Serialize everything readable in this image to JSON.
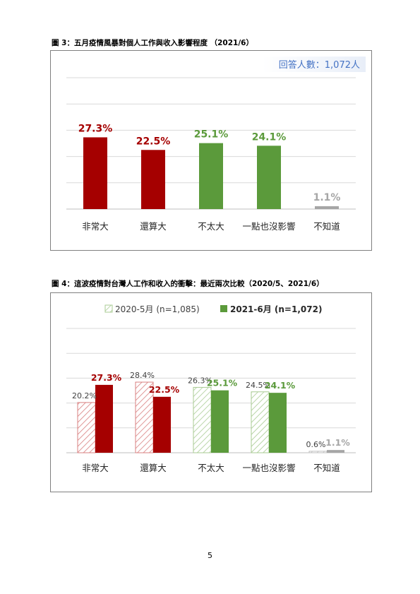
{
  "figure1": {
    "title": "圖 3：五月疫情風暴對個人工作與收入影響程度 （2021/6）",
    "annotation": "回答人數：1,072人"
  },
  "figure2": {
    "title": "圖 4：這波疫情對台灣人工作和收入的衝擊：最近兩次比較（2020/5、2021/6）"
  },
  "page_number": "5",
  "colors": {
    "dark_red": "#a50000",
    "green": "#5b9a3b",
    "gray": "#a6a6a6",
    "annotation_blue": "#4472c4",
    "hatch_red": "#d98080",
    "hatch_green": "#b5d3a2"
  },
  "chart_data": [
    {
      "type": "bar",
      "categories": [
        "非常大",
        "還算大",
        "不太大",
        "一點也沒影響",
        "不知道"
      ],
      "values": [
        27.3,
        22.5,
        25.1,
        24.1,
        1.1
      ],
      "data_labels": [
        "27.3%",
        "22.5%",
        "25.1%",
        "24.1%",
        "1.1%"
      ],
      "bar_colors": [
        "#a50000",
        "#a50000",
        "#5b9a3b",
        "#5b9a3b",
        "#a6a6a6"
      ],
      "ylim": [
        0,
        50
      ],
      "grid": true,
      "title": "",
      "xlabel": "",
      "ylabel": ""
    },
    {
      "type": "bar",
      "categories": [
        "非常大",
        "還算大",
        "不太大",
        "一點也沒影響",
        "不知道"
      ],
      "series": [
        {
          "name": "2020-5月 (n=1,085)",
          "values": [
            20.2,
            28.4,
            26.3,
            24.5,
            0.6
          ],
          "data_labels": [
            "20.2%",
            "28.4%",
            "26.3%",
            "24.5%",
            "0.6%"
          ],
          "style": "hatched",
          "colors": [
            "#d98080",
            "#d98080",
            "#b5d3a2",
            "#b5d3a2",
            "#bfbfbf"
          ]
        },
        {
          "name": "2021-6月 (n=1,072)",
          "values": [
            27.3,
            22.5,
            25.1,
            24.1,
            1.1
          ],
          "data_labels": [
            "27.3%",
            "22.5%",
            "25.1%",
            "24.1%",
            "1.1%"
          ],
          "style": "solid",
          "colors": [
            "#a50000",
            "#a50000",
            "#5b9a3b",
            "#5b9a3b",
            "#a6a6a6"
          ]
        }
      ],
      "legend_position": "top",
      "ylim": [
        0,
        50
      ],
      "grid": true,
      "title": "",
      "xlabel": "",
      "ylabel": ""
    }
  ]
}
